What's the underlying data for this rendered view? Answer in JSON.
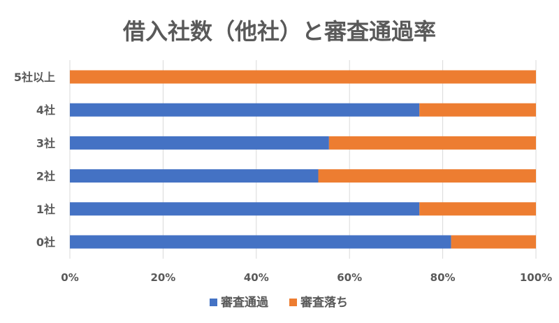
{
  "chart_data": {
    "type": "bar",
    "orientation": "horizontal",
    "stacked": true,
    "percent": true,
    "title": "借入社数（他社）と審査通過率",
    "categories": [
      "5社以上",
      "4社",
      "3社",
      "2社",
      "1社",
      "0社"
    ],
    "series": [
      {
        "name": "審査通過",
        "color": "#4472C4",
        "values": [
          0,
          75,
          55.6,
          53.3,
          75,
          81.8
        ]
      },
      {
        "name": "審査落ち",
        "color": "#ED7D31",
        "values": [
          100,
          25,
          44.4,
          46.7,
          25,
          18.2
        ]
      }
    ],
    "xlim": [
      0,
      100
    ],
    "x_ticks": [
      "0%",
      "20%",
      "40%",
      "60%",
      "80%",
      "100%"
    ],
    "grid": true,
    "legend_position": "bottom"
  }
}
